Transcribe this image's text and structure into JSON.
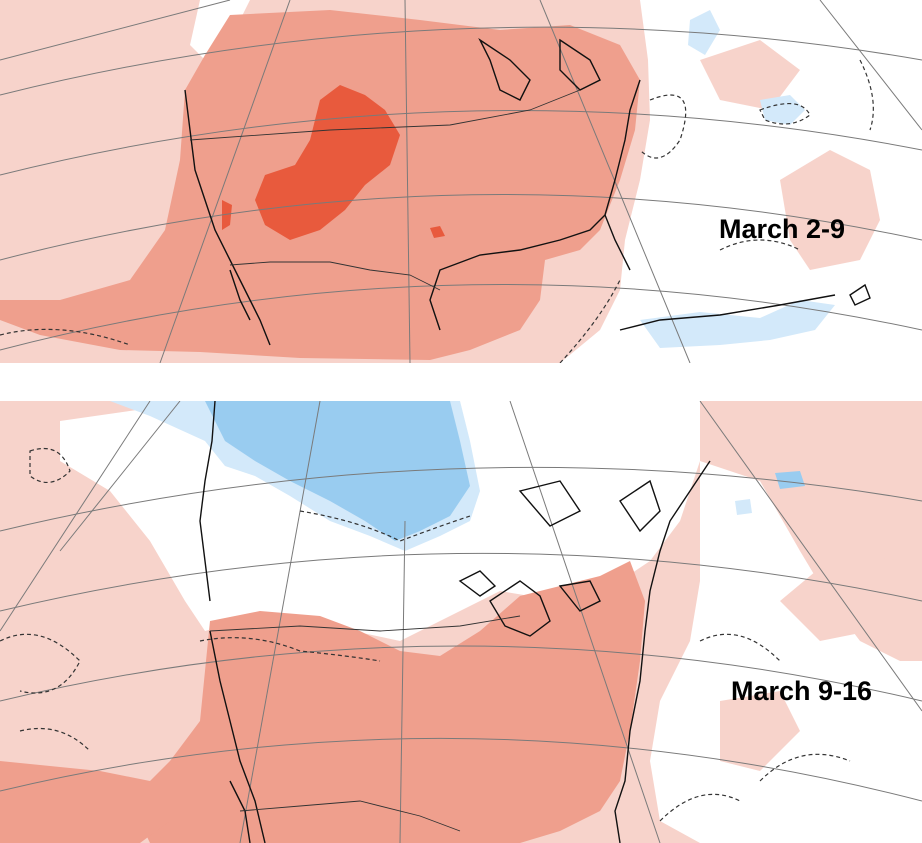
{
  "panels": [
    {
      "label": "March 2-9"
    },
    {
      "label": "March 9-16"
    }
  ],
  "colors": {
    "warm_light": "#f7d3cb",
    "warm_medium": "#ef9f8d",
    "warm_strong": "#e85a3d",
    "cool_light": "#d3e9fa",
    "cool_medium": "#99ccf0",
    "neutral": "#ffffff"
  }
}
